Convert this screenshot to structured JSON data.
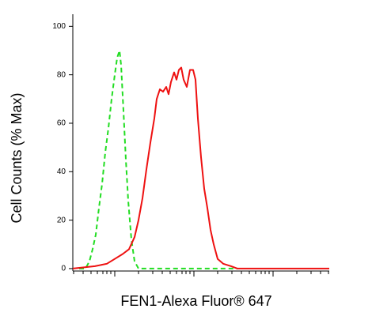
{
  "chart_data": {
    "type": "line",
    "xlabel": "FEN1-Alexa Fluor® 647",
    "ylabel": "Cell Counts (% Max)",
    "xscale": "log10-units",
    "xlim": [
      0.47,
      3.71
    ],
    "ylim": [
      -1,
      105
    ],
    "xticks": [
      1,
      2,
      3
    ],
    "xminor_ticks": [
      0.48,
      0.6,
      0.7,
      0.78,
      0.85,
      0.9,
      0.95,
      1.3,
      1.48,
      1.6,
      1.7,
      1.78,
      1.85,
      1.9,
      1.95,
      2.3,
      2.48,
      2.6,
      2.7,
      2.78,
      2.85,
      2.9,
      2.95,
      3.3,
      3.48,
      3.6,
      3.7
    ],
    "yticks": [
      0,
      20,
      40,
      60,
      80,
      100
    ],
    "series": [
      {
        "color": "#22dd22",
        "dash": true,
        "x": [
          0.55,
          0.63,
          0.68,
          0.72,
          0.76,
          0.8,
          0.84,
          0.88,
          0.92,
          0.96,
          1.0,
          1.03,
          1.06,
          1.08,
          1.11,
          1.14,
          1.17,
          1.21,
          1.25,
          1.3,
          1.4,
          2.55
        ],
        "values": [
          0,
          0,
          3,
          8,
          14,
          25,
          35,
          48,
          58,
          70,
          80,
          87,
          90,
          84,
          65,
          45,
          28,
          12,
          3,
          0,
          0,
          0
        ]
      },
      {
        "color": "#ee1111",
        "dash": false,
        "x": [
          0.47,
          0.75,
          0.9,
          1.0,
          1.1,
          1.18,
          1.25,
          1.3,
          1.35,
          1.4,
          1.45,
          1.5,
          1.53,
          1.57,
          1.61,
          1.65,
          1.68,
          1.71,
          1.75,
          1.78,
          1.81,
          1.84,
          1.87,
          1.91,
          1.95,
          1.99,
          2.02,
          2.05,
          2.09,
          2.13,
          2.17,
          2.21,
          2.25,
          2.3,
          2.37,
          2.47,
          2.55,
          3.71
        ],
        "values": [
          0,
          1,
          2,
          4,
          6,
          8,
          13,
          20,
          29,
          41,
          52,
          62,
          70,
          74,
          73,
          75,
          72,
          77,
          81,
          78,
          82,
          83,
          78,
          75,
          82,
          82,
          78,
          62,
          46,
          33,
          25,
          16,
          10,
          4,
          2,
          1,
          0,
          0
        ]
      }
    ]
  }
}
